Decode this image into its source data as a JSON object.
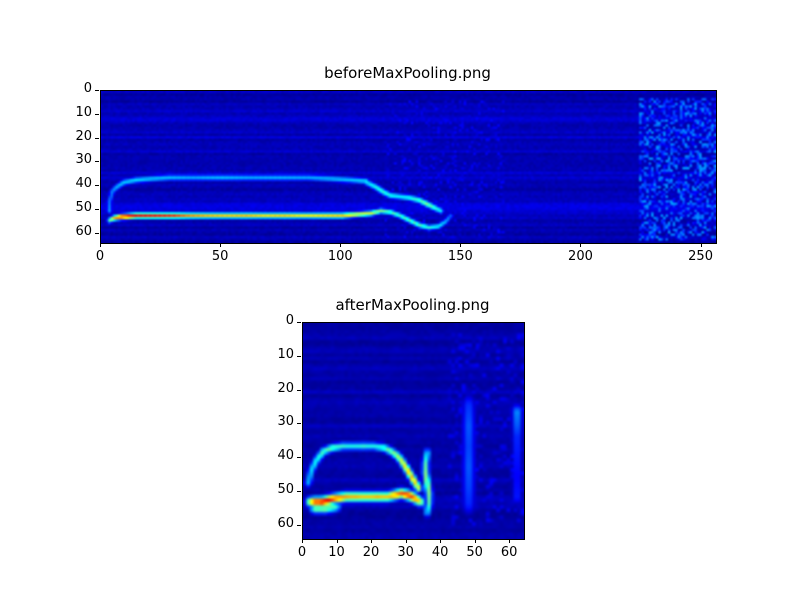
{
  "figure": {
    "background_color": "#ffffff"
  },
  "chart_data": [
    {
      "type": "heatmap",
      "title": "beforeMaxPooling.png",
      "colormap": "jet",
      "x_label": "",
      "y_label": "",
      "x_range": [
        0,
        256
      ],
      "y_range": [
        0,
        64
      ],
      "y_axis_inverted": true,
      "grid": false,
      "x_ticks": [
        0,
        50,
        100,
        150,
        200,
        250
      ],
      "y_ticks": [
        0,
        10,
        20,
        30,
        40,
        50,
        60
      ],
      "background_value": 0.015,
      "row_noise": 0.035,
      "pixel_noise": 0.028,
      "speckle_regions": [
        {
          "x0": 224,
          "x1": 256,
          "y0": 3,
          "y1": 63,
          "density": 0.6,
          "vmin": 0.06,
          "vmax": 0.28
        },
        {
          "x0": 118,
          "x1": 168,
          "y0": 4,
          "y1": 62,
          "density": 0.22,
          "vmin": 0.05,
          "vmax": 0.13
        }
      ],
      "ridges": [
        {
          "name": "bright-harmonic-ridge",
          "sigma": {
            "sx": 0.7,
            "sy": 0.8
          },
          "points": [
            [
              3,
              54,
              0.45
            ],
            [
              5,
              53,
              0.7
            ],
            [
              8,
              52.5,
              0.88
            ],
            [
              14,
              52,
              0.9
            ],
            [
              22,
              52,
              0.88
            ],
            [
              30,
              52,
              0.85
            ],
            [
              36,
              52,
              0.75
            ],
            [
              44,
              52,
              0.7
            ],
            [
              52,
              52,
              0.68
            ],
            [
              60,
              52,
              0.7
            ],
            [
              68,
              52,
              0.66
            ],
            [
              76,
              52,
              0.68
            ],
            [
              84,
              52,
              0.64
            ],
            [
              92,
              52,
              0.66
            ],
            [
              100,
              52,
              0.68
            ],
            [
              106,
              51.5,
              0.62
            ],
            [
              112,
              51,
              0.58
            ],
            [
              116,
              50,
              0.5
            ]
          ]
        },
        {
          "name": "ridge-tail-curve",
          "sigma": {
            "sx": 0.7,
            "sy": 0.8
          },
          "points": [
            [
              116,
              50,
              0.5
            ],
            [
              120,
              50.5,
              0.46
            ],
            [
              124,
              52,
              0.44
            ],
            [
              128,
              54,
              0.46
            ],
            [
              132,
              56,
              0.46
            ],
            [
              136,
              57,
              0.42
            ],
            [
              140,
              56.5,
              0.38
            ],
            [
              143,
              54.5,
              0.3
            ],
            [
              145,
              52,
              0.22
            ]
          ]
        },
        {
          "name": "upper-harmonic-ridge",
          "sigma": {
            "sx": 0.8,
            "sy": 0.9
          },
          "points": [
            [
              4,
              42,
              0.25
            ],
            [
              6,
              40,
              0.3
            ],
            [
              9,
              38,
              0.33
            ],
            [
              14,
              37,
              0.35
            ],
            [
              20,
              36.5,
              0.33
            ],
            [
              28,
              36,
              0.32
            ],
            [
              38,
              36,
              0.3
            ],
            [
              50,
              36,
              0.32
            ],
            [
              62,
              36,
              0.3
            ],
            [
              74,
              36,
              0.31
            ],
            [
              86,
              36,
              0.3
            ],
            [
              96,
              36.5,
              0.32
            ],
            [
              104,
              37,
              0.33
            ],
            [
              110,
              37.5,
              0.35
            ]
          ]
        },
        {
          "name": "upper-tail-curve",
          "sigma": {
            "sx": 0.8,
            "sy": 0.9
          },
          "points": [
            [
              110,
              38,
              0.35
            ],
            [
              114,
              40,
              0.4
            ],
            [
              117,
              42,
              0.42
            ],
            [
              120,
              43.5,
              0.4
            ],
            [
              124,
              44,
              0.37
            ],
            [
              128,
              44.5,
              0.4
            ],
            [
              132,
              45.5,
              0.44
            ],
            [
              135,
              47,
              0.5
            ],
            [
              138,
              48.5,
              0.44
            ],
            [
              141,
              50,
              0.36
            ]
          ]
        },
        {
          "name": "left-connector",
          "sigma": {
            "sx": 0.8,
            "sy": 0.9
          },
          "points": [
            [
              3,
              50,
              0.28
            ],
            [
              3,
              46,
              0.24
            ],
            [
              4,
              43,
              0.24
            ]
          ]
        }
      ]
    },
    {
      "type": "heatmap",
      "title": "afterMaxPooling.png",
      "colormap": "jet",
      "x_label": "",
      "y_label": "",
      "x_range": [
        0,
        64
      ],
      "y_range": [
        0,
        64
      ],
      "y_axis_inverted": true,
      "grid": false,
      "x_ticks": [
        0,
        10,
        20,
        30,
        40,
        50,
        60
      ],
      "y_ticks": [
        0,
        10,
        20,
        30,
        40,
        50,
        60
      ],
      "background_value": 0.015,
      "row_noise": 0.02,
      "pixel_noise": 0.02,
      "speckle_regions": [
        {
          "x0": 42,
          "x1": 64,
          "y0": 3,
          "y1": 60,
          "density": 0.25,
          "vmin": 0.04,
          "vmax": 0.12
        }
      ],
      "ridges": [
        {
          "name": "bright-harmonic-ridge",
          "sigma": {
            "sx": 0.8,
            "sy": 1.0
          },
          "points": [
            [
              1.5,
              52.5,
              0.6
            ],
            [
              3,
              52.5,
              0.85
            ],
            [
              5,
              52.5,
              0.9
            ],
            [
              7,
              52,
              0.9
            ],
            [
              9,
              51.5,
              0.8
            ],
            [
              12,
              51,
              0.72
            ],
            [
              15,
              51,
              0.7
            ],
            [
              18,
              51,
              0.68
            ],
            [
              21,
              51,
              0.7
            ],
            [
              24,
              51,
              0.68
            ],
            [
              26,
              50.5,
              0.74
            ],
            [
              28,
              50,
              0.8
            ],
            [
              30,
              50.5,
              0.85
            ],
            [
              32,
              51.5,
              0.78
            ],
            [
              33.5,
              52.5,
              0.6
            ]
          ]
        },
        {
          "name": "ridge-underglow",
          "sigma": {
            "sx": 1.0,
            "sy": 1.0
          },
          "points": [
            [
              3,
              54.5,
              0.5
            ],
            [
              6,
              54.5,
              0.52
            ],
            [
              9,
              54,
              0.42
            ]
          ]
        },
        {
          "name": "upper-arc",
          "sigma": {
            "sx": 0.7,
            "sy": 0.8
          },
          "points": [
            [
              1,
              47,
              0.3
            ],
            [
              2,
              43,
              0.35
            ],
            [
              3.5,
              40,
              0.4
            ],
            [
              5.5,
              37.5,
              0.45
            ],
            [
              8,
              36.5,
              0.48
            ],
            [
              11,
              36,
              0.42
            ],
            [
              14,
              36,
              0.4
            ],
            [
              17,
              36,
              0.42
            ],
            [
              20,
              36,
              0.4
            ],
            [
              23,
              36.5,
              0.45
            ],
            [
              25,
              37.5,
              0.5
            ],
            [
              27,
              39,
              0.55
            ],
            [
              28.5,
              41,
              0.62
            ],
            [
              30,
              43.5,
              0.68
            ],
            [
              31.5,
              46,
              0.7
            ],
            [
              33,
              48.5,
              0.6
            ]
          ]
        },
        {
          "name": "right-vertical-streak",
          "sigma": {
            "sx": 0.7,
            "sy": 1.0
          },
          "points": [
            [
              35.5,
              38,
              0.35
            ],
            [
              35,
              41,
              0.45
            ],
            [
              35,
              44,
              0.5
            ],
            [
              35.5,
              47,
              0.55
            ],
            [
              36,
              50,
              0.5
            ],
            [
              36,
              53,
              0.45
            ],
            [
              35.5,
              55.5,
              0.35
            ]
          ]
        },
        {
          "name": "mid-vertical-band",
          "sigma": {
            "sx": 1.3,
            "sy": 2.2
          },
          "points": [
            [
              47.5,
              24,
              0.18
            ],
            [
              47.5,
              30,
              0.22
            ],
            [
              47.5,
              36,
              0.2
            ],
            [
              47.5,
              42,
              0.22
            ],
            [
              47.5,
              48,
              0.2
            ],
            [
              47.5,
              53,
              0.17
            ]
          ]
        },
        {
          "name": "right-edge-blobs",
          "sigma": {
            "sx": 1.0,
            "sy": 1.6
          },
          "points": [
            [
              61.5,
              26,
              0.28
            ],
            [
              61.5,
              29.5,
              0.24
            ],
            [
              61.5,
              33,
              0.18
            ],
            [
              61.5,
              45,
              0.14
            ],
            [
              61.5,
              51,
              0.16
            ]
          ]
        }
      ]
    }
  ]
}
